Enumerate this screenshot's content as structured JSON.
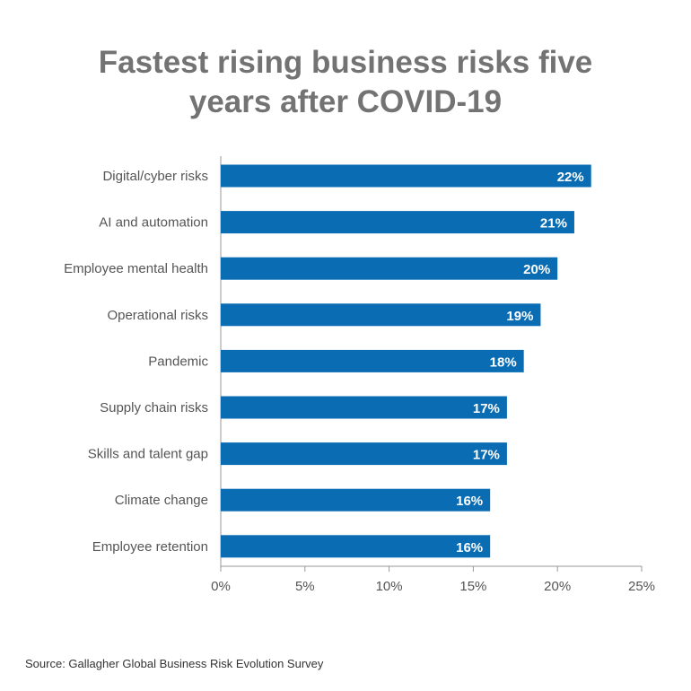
{
  "title_lines": [
    "Fastest rising business risks five",
    "years after COVID-19"
  ],
  "source": "Source: Gallagher Global Business Risk Evolution Survey",
  "colors": {
    "bar": "#0a6db3",
    "title": "#737373",
    "axis": "#999999",
    "label": "#555555",
    "bar_label": "#ffffff"
  },
  "chart_data": {
    "type": "bar",
    "orientation": "horizontal",
    "title": "Fastest rising business risks five years after COVID-19",
    "categories": [
      "Digital/cyber risks",
      "AI and automation",
      "Employee mental health",
      "Operational risks",
      "Pandemic",
      "Supply chain risks",
      "Skills and talent gap",
      "Climate change",
      "Employee retention"
    ],
    "values": [
      22,
      21,
      20,
      19,
      18,
      17,
      17,
      16,
      16
    ],
    "value_labels": [
      "22%",
      "21%",
      "20%",
      "19%",
      "18%",
      "17%",
      "17%",
      "16%",
      "16%"
    ],
    "xlim": [
      0,
      25
    ],
    "x_ticks": [
      0,
      5,
      10,
      15,
      20,
      25
    ],
    "x_tick_labels": [
      "0%",
      "5%",
      "10%",
      "15%",
      "20%",
      "25%"
    ],
    "grid": false,
    "legend": "none"
  }
}
